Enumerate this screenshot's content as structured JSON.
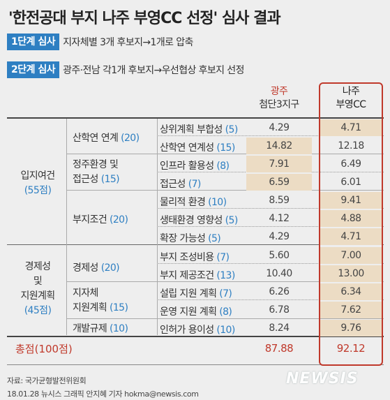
{
  "title": "'한전공대 부지 나주 부영CC 선정' 심사 결과",
  "steps": [
    {
      "badge": "1단계 심사",
      "desc": "지자체별 3개 후보지→1개로 압축"
    },
    {
      "badge": "2단계 심사",
      "desc": "광주·전남 각1개 후보지→우선협상 후보지 선정"
    }
  ],
  "columns": {
    "gwangju_l1": "광주",
    "gwangju_l2": "첨단3지구",
    "naju_l1": "나주",
    "naju_l2": "부영CC"
  },
  "categories": [
    {
      "name": "입지여건",
      "weight": "(55점)"
    },
    {
      "name_l1": "경제성",
      "name_l2": "및",
      "name_l3": "지원계획",
      "weight": "(45점)"
    }
  ],
  "subcategories": [
    {
      "name": "산학연 연계",
      "weight": "(20)"
    },
    {
      "name_l1": "정주환경 및",
      "name_l2": "접근성",
      "weight": "(15)"
    },
    {
      "name": "부지조건",
      "weight": "(20)"
    },
    {
      "name": "경제성",
      "weight": "(20)"
    },
    {
      "name_l1": "지자체",
      "name_l2": "지원계획",
      "weight": "(15)"
    },
    {
      "name": "개발규제",
      "weight": "(10)"
    }
  ],
  "rows": [
    {
      "item": "상위계획 부합성",
      "weight": "(5)",
      "gwangju": "4.29",
      "naju": "4.71",
      "naju_hl": true
    },
    {
      "item": "산학연 연계성",
      "weight": "(15)",
      "gwangju": "14.82",
      "naju": "12.18",
      "gwangju_hl": true
    },
    {
      "item": "인프라 활용성",
      "weight": "(8)",
      "gwangju": "7.91",
      "naju": "6.49",
      "gwangju_hl": true
    },
    {
      "item": "접근성",
      "weight": "(7)",
      "gwangju": "6.59",
      "naju": "6.01",
      "gwangju_hl": true
    },
    {
      "item": "물리적 환경",
      "weight": "(10)",
      "gwangju": "8.59",
      "naju": "9.41",
      "naju_hl": true
    },
    {
      "item": "생태환경 영향성",
      "weight": "(5)",
      "gwangju": "4.12",
      "naju": "4.88",
      "naju_hl": true
    },
    {
      "item": "확장 가능성",
      "weight": "(5)",
      "gwangju": "4.29",
      "naju": "4.71",
      "naju_hl": true
    },
    {
      "item": "부지 조성비용",
      "weight": "(7)",
      "gwangju": "5.60",
      "naju": "7.00",
      "naju_hl": true
    },
    {
      "item": "부지 제공조건",
      "weight": "(13)",
      "gwangju": "10.40",
      "naju": "13.00",
      "naju_hl": true
    },
    {
      "item": "설립 지원 계획",
      "weight": "(7)",
      "gwangju": "6.26",
      "naju": "6.34",
      "naju_hl": true
    },
    {
      "item": "운영 지원 계획",
      "weight": "(8)",
      "gwangju": "6.78",
      "naju": "7.62",
      "naju_hl": true
    },
    {
      "item": "인허가 용이성",
      "weight": "(10)",
      "gwangju": "8.24",
      "naju": "9.76",
      "naju_hl": true
    }
  ],
  "total": {
    "label": "총점",
    "weight": "(100점)",
    "gwangju": "87.88",
    "naju": "92.12"
  },
  "source": "자료: 국가균형발전위원회",
  "credit": "18.01.28 뉴시스 그래픽 안지혜 기자 hokma@newsis.com",
  "logo": "NEWSIS",
  "colors": {
    "accent_blue": "#2e7fc2",
    "accent_red": "#c0392b",
    "highlight": "#ecdcc4",
    "background": "#eeeeee"
  }
}
